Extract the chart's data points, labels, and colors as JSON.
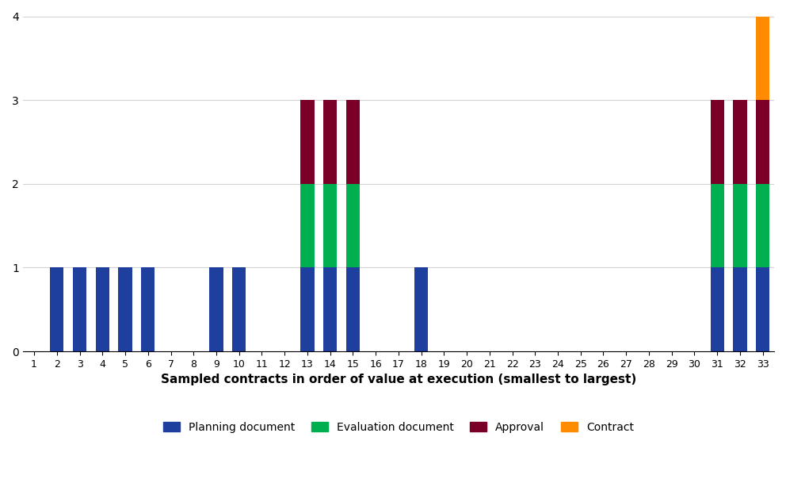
{
  "categories": [
    1,
    2,
    3,
    4,
    5,
    6,
    7,
    8,
    9,
    10,
    11,
    12,
    13,
    14,
    15,
    16,
    17,
    18,
    19,
    20,
    21,
    22,
    23,
    24,
    25,
    26,
    27,
    28,
    29,
    30,
    31,
    32,
    33
  ],
  "planning": [
    0,
    1,
    1,
    1,
    1,
    1,
    0,
    0,
    1,
    1,
    0,
    0,
    1,
    1,
    1,
    0,
    0,
    1,
    0,
    0,
    0,
    0,
    0,
    0,
    0,
    0,
    0,
    0,
    0,
    0,
    1,
    1,
    1
  ],
  "evaluation": [
    0,
    0,
    0,
    0,
    0,
    0,
    0,
    0,
    0,
    0,
    0,
    0,
    1,
    1,
    1,
    0,
    0,
    0,
    0,
    0,
    0,
    0,
    0,
    0,
    0,
    0,
    0,
    0,
    0,
    0,
    1,
    1,
    1
  ],
  "approval": [
    0,
    0,
    0,
    0,
    0,
    0,
    0,
    0,
    0,
    0,
    0,
    0,
    1,
    1,
    1,
    0,
    0,
    0,
    0,
    0,
    0,
    0,
    0,
    0,
    0,
    0,
    0,
    0,
    0,
    0,
    1,
    1,
    1
  ],
  "contract_doc": [
    0,
    0,
    0,
    0,
    0,
    0,
    0,
    0,
    0,
    0,
    0,
    0,
    0,
    0,
    0,
    0,
    0,
    0,
    0,
    0,
    0,
    0,
    0,
    0,
    0,
    0,
    0,
    0,
    0,
    0,
    0,
    0,
    1
  ],
  "colors": {
    "planning": "#1f3f9f",
    "evaluation": "#00b050",
    "approval": "#7b0028",
    "contract_doc": "#ff8c00"
  },
  "legend_labels": [
    "Planning document",
    "Evaluation document",
    "Approval",
    "Contract"
  ],
  "xlabel": "Sampled contracts in order of value at execution (smallest to largest)",
  "ylim": [
    0,
    4
  ],
  "yticks": [
    0,
    1,
    2,
    3,
    4
  ],
  "title": "",
  "bar_width": 0.6,
  "figsize": [
    9.92,
    6.04
  ],
  "dpi": 100
}
